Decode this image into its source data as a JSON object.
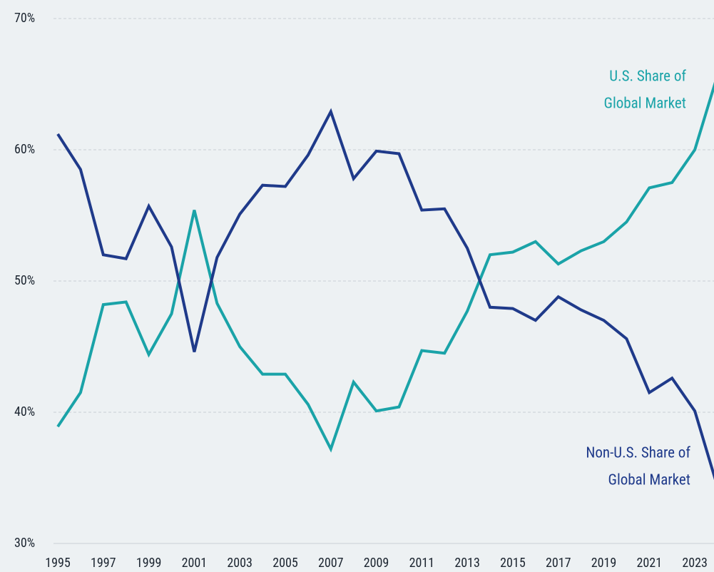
{
  "chart_data": {
    "type": "line",
    "x": [
      1995,
      1996,
      1997,
      1998,
      1999,
      2000,
      2001,
      2002,
      2003,
      2004,
      2005,
      2006,
      2007,
      2008,
      2009,
      2010,
      2011,
      2012,
      2013,
      2014,
      2015,
      2016,
      2017,
      2018,
      2019,
      2020,
      2021,
      2022,
      2023,
      2024
    ],
    "series": [
      {
        "label": [
          "U.S. Share of",
          "Global Market"
        ],
        "color": "#1aa3a8",
        "values": [
          38.9,
          41.5,
          48.2,
          48.4,
          44.4,
          47.5,
          55.4,
          48.3,
          45.0,
          42.9,
          42.9,
          40.6,
          37.2,
          42.3,
          40.1,
          40.4,
          44.7,
          44.5,
          47.7,
          52.0,
          52.2,
          53.0,
          51.3,
          52.3,
          53.0,
          54.5,
          57.1,
          57.5,
          60.0,
          65.7
        ]
      },
      {
        "label": [
          "Non-U.S. Share of",
          "Global Market"
        ],
        "color": "#1f3a8a",
        "values": [
          61.2,
          58.5,
          52.0,
          51.7,
          55.7,
          52.6,
          44.6,
          51.8,
          55.1,
          57.3,
          57.2,
          59.6,
          62.9,
          57.8,
          59.9,
          59.7,
          55.4,
          55.5,
          52.5,
          48.0,
          47.9,
          47.0,
          48.8,
          47.8,
          47.0,
          45.6,
          41.5,
          42.6,
          40.1,
          34.3
        ]
      }
    ],
    "xlim": [
      1995,
      2024
    ],
    "xticks": [
      1995,
      1997,
      1999,
      2001,
      2003,
      2005,
      2007,
      2009,
      2011,
      2013,
      2015,
      2017,
      2019,
      2021,
      2023
    ],
    "ylim": [
      30,
      70
    ],
    "yticks": [
      {
        "value": 30,
        "label": "30%"
      },
      {
        "value": 40,
        "label": "40%"
      },
      {
        "value": 50,
        "label": "50%"
      },
      {
        "value": 60,
        "label": "60%"
      },
      {
        "value": 70,
        "label": "70%"
      }
    ],
    "grid": true
  }
}
